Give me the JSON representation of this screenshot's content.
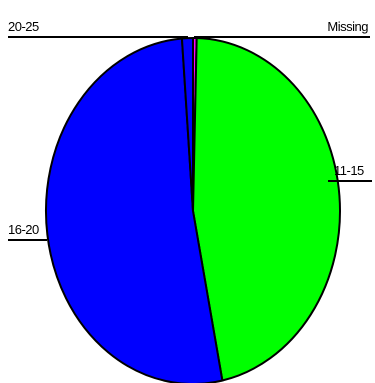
{
  "chart_data": {
    "type": "pie",
    "categories": [
      "Missing",
      "11-15",
      "16-20",
      "20-25"
    ],
    "values": [
      0.4,
      46.4,
      52.0,
      1.2
    ],
    "colors": {
      "Missing": "#ff00ff",
      "11-15": "#00ff00",
      "16-20": "#0000ff",
      "20-25": "#0000ff",
      "outline": "#000000"
    },
    "start_angle_deg": 0,
    "direction": "clockwise",
    "labels": {
      "missing": "Missing",
      "age_11_15": "11-15",
      "age_16_20": "16-20",
      "age_20_25": "20-25"
    }
  }
}
